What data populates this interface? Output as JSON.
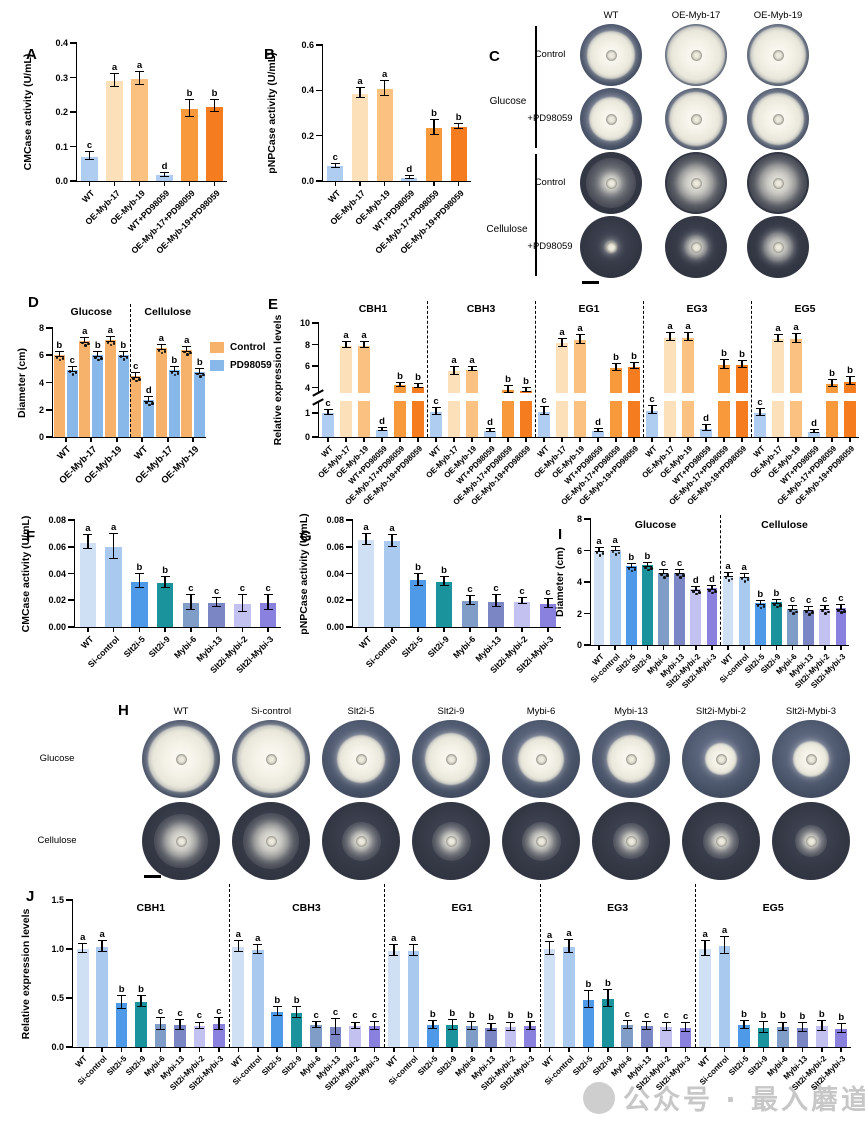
{
  "watermark": {
    "text": "公众号 · 最入蘑道"
  },
  "photos": {
    "C": {
      "label": "C",
      "col_labels": [
        "WT",
        "OE-Myb-17",
        "OE-Myb-19"
      ],
      "group_labels": [
        "Glucose",
        "Cellulose"
      ],
      "rows": [
        {
          "medium": "Glucose",
          "treatment": "Control",
          "scales": [
            0.76,
            0.93,
            0.9
          ]
        },
        {
          "medium": "Glucose",
          "treatment": "+PD98059",
          "scales": [
            0.72,
            0.88,
            0.85
          ]
        },
        {
          "medium": "Cellulose",
          "treatment": "Control",
          "scales": [
            0.34,
            0.58,
            0.62
          ],
          "halo": [
            0.82,
            0.92,
            0.95
          ]
        },
        {
          "medium": "Cellulose",
          "treatment": "+PD98059",
          "scales": [
            0.24,
            0.4,
            0.48
          ]
        }
      ]
    },
    "H": {
      "label": "H",
      "col_labels": [
        "WT",
        "Si-control",
        "Slt2i-5",
        "Slt2i-9",
        "Mybi-6",
        "Mybi-13",
        "Slt2i-Mybi-2",
        "Slt2i-Mybi-3"
      ],
      "rows": [
        {
          "label": "Glucose",
          "scales": [
            0.84,
            0.86,
            0.62,
            0.66,
            0.6,
            0.62,
            0.42,
            0.46
          ]
        },
        {
          "label": "Cellulose",
          "scales": [
            0.44,
            0.46,
            0.28,
            0.28,
            0.3,
            0.26,
            0.26,
            0.24
          ],
          "halo": [
            0.7,
            0.72,
            0.5,
            0.5,
            0.5,
            0.45,
            0.45,
            0.42
          ]
        }
      ]
    }
  },
  "chart_data": [
    {
      "panel": "A",
      "type": "bar",
      "ylabel": "CMCase activity (U/mL)",
      "ylim": [
        0,
        0.4
      ],
      "ymax": 0.4,
      "yticks": [
        {
          "v": 0,
          "label": "0.0"
        },
        {
          "v": 0.1,
          "label": "0.1"
        },
        {
          "v": 0.2,
          "label": "0.2"
        },
        {
          "v": 0.3,
          "label": "0.3"
        },
        {
          "v": 0.4,
          "label": "0.4"
        }
      ],
      "categories": [
        "WT",
        "OE-Myb-17",
        "OE-Myb-19",
        "WT+PD98059",
        "OE-Myb-17+PD98059",
        "OE-Myb-19+PD98059"
      ],
      "values": [
        0.07,
        0.29,
        0.295,
        0.016,
        0.21,
        0.215
      ],
      "errors": [
        0.01,
        0.017,
        0.017,
        0.005,
        0.023,
        0.016
      ],
      "letters": [
        "c",
        "a",
        "a",
        "d",
        "b",
        "b"
      ],
      "colors": [
        "#aecdf0",
        "#fce0ba",
        "#fbc181",
        "#aecdf0",
        "#f8993b",
        "#f57d1f"
      ]
    },
    {
      "panel": "B",
      "type": "bar",
      "ylabel": "pNPCase activity (U/mL)",
      "ylim": [
        0,
        0.6
      ],
      "ymax": 0.6,
      "yticks": [
        {
          "v": 0,
          "label": "0.0"
        },
        {
          "v": 0.2,
          "label": "0.2"
        },
        {
          "v": 0.4,
          "label": "0.4"
        },
        {
          "v": 0.6,
          "label": "0.6"
        }
      ],
      "categories": [
        "WT",
        "OE-Myb-17",
        "OE-Myb-19",
        "WT+PD98059",
        "OE-Myb-17+PD98059",
        "OE-Myb-19+PD98059"
      ],
      "values": [
        0.065,
        0.385,
        0.405,
        0.013,
        0.235,
        0.237
      ],
      "errors": [
        0.006,
        0.02,
        0.03,
        0.004,
        0.03,
        0.008
      ],
      "letters": [
        "c",
        "a",
        "a",
        "d",
        "b",
        "b"
      ],
      "colors": [
        "#aecdf0",
        "#fce0ba",
        "#fbc181",
        "#aecdf0",
        "#f8993b",
        "#f57d1f"
      ]
    },
    {
      "panel": "D",
      "type": "bar",
      "ylabel": "Diameter (cm)",
      "ylim": [
        0,
        8
      ],
      "ymax": 8,
      "yticks": [
        {
          "v": 0,
          "label": "0"
        },
        {
          "v": 2,
          "label": "2"
        },
        {
          "v": 4,
          "label": "4"
        },
        {
          "v": 6,
          "label": "6"
        },
        {
          "v": 8,
          "label": "8"
        }
      ],
      "group_titles": [
        "Glucose",
        "Cellulose"
      ],
      "categories": [
        "WT",
        "OE-Myb-17",
        "OE-Myb-19"
      ],
      "series": [
        {
          "name": "Control",
          "color": "#f6b26b",
          "values": [
            [
              6.0,
              7.05,
              7.1
            ],
            [
              4.45,
              6.5,
              6.4
            ]
          ],
          "letters": [
            [
              "b",
              "a",
              "a"
            ],
            [
              "c",
              "a",
              "a"
            ]
          ]
        },
        {
          "name": "PD98059",
          "color": "#88b7ea",
          "values": [
            [
              4.95,
              6.0,
              6.05
            ],
            [
              2.7,
              4.9,
              4.8
            ]
          ],
          "letters": [
            [
              "c",
              "b",
              "b"
            ],
            [
              "d",
              "b",
              "b"
            ]
          ]
        }
      ],
      "errors": 0.15,
      "dots": true,
      "xfont": "big",
      "legend": [
        {
          "label": "Control",
          "color": "#f6b26b"
        },
        {
          "label": "PD98059",
          "color": "#88b7ea"
        }
      ]
    },
    {
      "panel": "E",
      "type": "bar",
      "ylabel": "Relative expression levels",
      "brk": {
        "lower": [
          0,
          1.5
        ],
        "upper": [
          3.5,
          10
        ],
        "lowerH": 36,
        "gap": 8
      },
      "yticks": [
        {
          "v": 0,
          "label": "0"
        },
        {
          "v": 1,
          "label": "1"
        },
        {
          "v": 4,
          "label": "4"
        },
        {
          "v": 6,
          "label": "6"
        },
        {
          "v": 8,
          "label": "8"
        },
        {
          "v": 10,
          "label": "10"
        }
      ],
      "subpanels": [
        "CBH1",
        "CBH3",
        "EG1",
        "EG3",
        "EG5"
      ],
      "categories": [
        "WT",
        "OE-Myb-17",
        "OE-Myb-19",
        "WT+PD98059",
        "OE-Myb-17+PD98059",
        "OE-Myb-19+PD98059"
      ],
      "values_2d": [
        [
          1.0,
          7.9,
          7.9,
          0.3,
          4.2,
          4.1
        ],
        [
          1.05,
          5.5,
          5.65,
          0.25,
          3.8,
          3.7
        ],
        [
          1.05,
          8.1,
          8.4,
          0.25,
          5.8,
          5.95
        ],
        [
          1.1,
          8.65,
          8.65,
          0.35,
          6.1,
          6.1
        ],
        [
          1.0,
          8.5,
          8.5,
          0.2,
          4.35,
          4.55
        ]
      ],
      "errors": [
        [
          0.1,
          0.25,
          0.25,
          0.05,
          0.15,
          0.12
        ],
        [
          0.12,
          0.3,
          0.15,
          0.05,
          0.3,
          0.15
        ],
        [
          0.15,
          0.3,
          0.35,
          0.06,
          0.3,
          0.2
        ],
        [
          0.15,
          0.3,
          0.35,
          0.1,
          0.35,
          0.25
        ],
        [
          0.12,
          0.25,
          0.4,
          0.05,
          0.3,
          0.35
        ]
      ],
      "letters": [
        [
          "c",
          "a",
          "a",
          "d",
          "b",
          "b"
        ],
        [
          "c",
          "a",
          "a",
          "d",
          "b",
          "b"
        ],
        [
          "c",
          "a",
          "a",
          "d",
          "b",
          "b"
        ],
        [
          "c",
          "a",
          "a",
          "d",
          "b",
          "b"
        ],
        [
          "c",
          "a",
          "a",
          "d",
          "b",
          "b"
        ]
      ],
      "colors": [
        "#aecdf0",
        "#fce0ba",
        "#fbc181",
        "#aecdf0",
        "#f8993b",
        "#f57d1f"
      ],
      "xfont": "small"
    },
    {
      "panel": "F",
      "type": "bar",
      "ylabel": "CMCase activity (U/mL)",
      "ylim": [
        0,
        0.08
      ],
      "ymax": 0.08,
      "yticks": [
        {
          "v": 0,
          "label": "0.00"
        },
        {
          "v": 0.02,
          "label": "0.02"
        },
        {
          "v": 0.04,
          "label": "0.04"
        },
        {
          "v": 0.06,
          "label": "0.06"
        },
        {
          "v": 0.08,
          "label": "0.08"
        }
      ],
      "categories": [
        "WT",
        "Si-control",
        "Slt2i-5",
        "Slt2i-9",
        "Mybi-6",
        "Mybi-13",
        "Slt2i-Mybi-2",
        "Slt2i-Mybi-3"
      ],
      "values": [
        0.063,
        0.06,
        0.034,
        0.033,
        0.018,
        0.018,
        0.017,
        0.018
      ],
      "errors": [
        0.005,
        0.009,
        0.005,
        0.004,
        0.005,
        0.003,
        0.006,
        0.005
      ],
      "letters": [
        "a",
        "a",
        "b",
        "b",
        "c",
        "c",
        "c",
        "c"
      ],
      "colors": [
        "#cfe0f5",
        "#a9c9ee",
        "#4e99e8",
        "#1b939c",
        "#7f9dc7",
        "#7b87c5",
        "#c3c1ef",
        "#8a80dd"
      ]
    },
    {
      "panel": "G",
      "type": "bar",
      "ylabel": "pNPCase activity (U/mL)",
      "ylim": [
        0,
        0.08
      ],
      "ymax": 0.08,
      "yticks": [
        {
          "v": 0,
          "label": "0.00"
        },
        {
          "v": 0.02,
          "label": "0.02"
        },
        {
          "v": 0.04,
          "label": "0.04"
        },
        {
          "v": 0.06,
          "label": "0.06"
        },
        {
          "v": 0.08,
          "label": "0.08"
        }
      ],
      "categories": [
        "WT",
        "Si-control",
        "Slt2i-5",
        "Slt2i-9",
        "Mybi-6",
        "Mybi-13",
        "Slt2i-Mybi-2",
        "Slt2i-Mybi-3"
      ],
      "values": [
        0.065,
        0.064,
        0.035,
        0.034,
        0.0195,
        0.019,
        0.019,
        0.0175
      ],
      "errors": [
        0.004,
        0.004,
        0.004,
        0.003,
        0.003,
        0.004,
        0.002,
        0.003
      ],
      "letters": [
        "a",
        "a",
        "b",
        "b",
        "c",
        "c",
        "c",
        "c"
      ],
      "colors": [
        "#cfe0f5",
        "#a9c9ee",
        "#4e99e8",
        "#1b939c",
        "#7f9dc7",
        "#7b87c5",
        "#c3c1ef",
        "#8a80dd"
      ]
    },
    {
      "panel": "I",
      "type": "bar",
      "ylabel": "Diameter (cm)",
      "ylim": [
        0,
        8
      ],
      "ymax": 8,
      "yticks": [
        {
          "v": 0,
          "label": "0"
        },
        {
          "v": 2,
          "label": "2"
        },
        {
          "v": 4,
          "label": "4"
        },
        {
          "v": 6,
          "label": "6"
        },
        {
          "v": 8,
          "label": "8"
        }
      ],
      "subpanels": [
        "Glucose",
        "Cellulose"
      ],
      "categories": [
        "WT",
        "Si-control",
        "Slt2i-5",
        "Slt2i-9",
        "Mybi-6",
        "Mybi-13",
        "Slt2i-Mybi-2",
        "Slt2i-Mybi-3"
      ],
      "values_2d": [
        [
          6.0,
          6.05,
          5.0,
          5.05,
          4.6,
          4.6,
          3.55,
          3.6
        ],
        [
          4.4,
          4.35,
          2.65,
          2.7,
          2.3,
          2.25,
          2.3,
          2.35
        ]
      ],
      "errors": 0.1,
      "dots": true,
      "letters": [
        [
          "a",
          "a",
          "b",
          "b",
          "c",
          "c",
          "d",
          "d"
        ],
        [
          "a",
          "a",
          "b",
          "b",
          "c",
          "c",
          "c",
          "c"
        ]
      ],
      "colors": [
        "#cfe0f5",
        "#a9c9ee",
        "#4e99e8",
        "#1b939c",
        "#7f9dc7",
        "#7b87c5",
        "#c3c1ef",
        "#8a80dd"
      ],
      "xfont": "small"
    },
    {
      "panel": "J",
      "type": "bar",
      "ylabel": "Relative expression levels",
      "ylim": [
        0,
        1.5
      ],
      "ymax": 1.5,
      "yticks": [
        {
          "v": 0,
          "label": "0.0"
        },
        {
          "v": 0.5,
          "label": "0.5"
        },
        {
          "v": 1.0,
          "label": "1.0"
        },
        {
          "v": 1.5,
          "label": "1.5"
        }
      ],
      "subpanels": [
        "CBH1",
        "CBH3",
        "EG1",
        "EG3",
        "EG5"
      ],
      "categories": [
        "WT",
        "Si-control",
        "Slt2i-5",
        "Slt2i-9",
        "Mybi-6",
        "Mybi-13",
        "Slt2i-Mybi-2",
        "Slt2i-Mybi-3"
      ],
      "values_2d": [
        [
          1.0,
          1.02,
          0.45,
          0.46,
          0.23,
          0.22,
          0.21,
          0.23
        ],
        [
          1.02,
          0.99,
          0.36,
          0.35,
          0.22,
          0.2,
          0.21,
          0.21
        ],
        [
          0.98,
          0.98,
          0.22,
          0.22,
          0.21,
          0.19,
          0.2,
          0.21
        ],
        [
          1.0,
          1.02,
          0.48,
          0.49,
          0.22,
          0.21,
          0.2,
          0.19
        ],
        [
          1.0,
          1.03,
          0.22,
          0.19,
          0.2,
          0.19,
          0.21,
          0.18
        ]
      ],
      "errors": [
        [
          0.04,
          0.05,
          0.06,
          0.05,
          0.06,
          0.05,
          0.03,
          0.06
        ],
        [
          0.05,
          0.04,
          0.04,
          0.05,
          0.03,
          0.08,
          0.03,
          0.04
        ],
        [
          0.05,
          0.05,
          0.04,
          0.05,
          0.04,
          0.03,
          0.04,
          0.04
        ],
        [
          0.06,
          0.06,
          0.08,
          0.08,
          0.04,
          0.04,
          0.04,
          0.04
        ],
        [
          0.07,
          0.08,
          0.04,
          0.05,
          0.04,
          0.04,
          0.05,
          0.04
        ]
      ],
      "letters": [
        [
          "a",
          "a",
          "b",
          "b",
          "c",
          "c",
          "c",
          "c"
        ],
        [
          "a",
          "a",
          "b",
          "b",
          "c",
          "c",
          "c",
          "c"
        ],
        [
          "a",
          "a",
          "b",
          "b",
          "b",
          "b",
          "b",
          "b"
        ],
        [
          "a",
          "a",
          "b",
          "b",
          "c",
          "c",
          "c",
          "c"
        ],
        [
          "a",
          "a",
          "b",
          "b",
          "b",
          "b",
          "b",
          "b"
        ]
      ],
      "colors": [
        "#cfe0f5",
        "#a9c9ee",
        "#4e99e8",
        "#1b939c",
        "#7f9dc7",
        "#7b87c5",
        "#c3c1ef",
        "#8a80dd"
      ],
      "xfont": "small"
    }
  ]
}
